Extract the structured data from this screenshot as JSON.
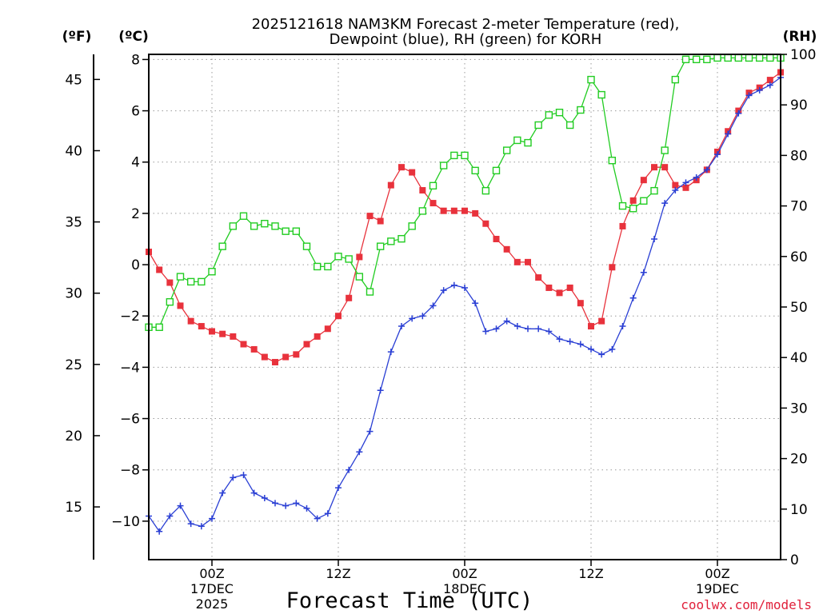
{
  "chart_data": {
    "type": "line",
    "title_line1": "2025121618 NAM3KM Forecast 2-meter Temperature (red),",
    "title_line2": "Dewpoint (blue), RH (green) for KORH",
    "xlabel": "Forecast Time (UTC)",
    "left_axis_label": "(ºF)",
    "temp_axis_label": "(ºC)",
    "right_axis_label": "(RH)",
    "credit": "coolwx.com/models",
    "x_unit": "forecast hour from 2025121618",
    "xlim": [
      0,
      60
    ],
    "ylim_c": [
      -11.5,
      8.2
    ],
    "ylim_f": [
      11.3,
      46.76
    ],
    "ylim_rh": [
      0,
      100
    ],
    "x_ticks": [
      {
        "hour": 6,
        "line1": "00Z",
        "line2": "17DEC",
        "line3": "2025"
      },
      {
        "hour": 18,
        "line1": "12Z",
        "line2": "",
        "line3": ""
      },
      {
        "hour": 30,
        "line1": "00Z",
        "line2": "18DEC",
        "line3": ""
      },
      {
        "hour": 42,
        "line1": "12Z",
        "line2": "",
        "line3": ""
      },
      {
        "hour": 54,
        "line1": "00Z",
        "line2": "19DEC",
        "line3": ""
      }
    ],
    "y_ticks_c": [
      {
        "v": 8,
        "label": "8"
      },
      {
        "v": 6,
        "label": "6"
      },
      {
        "v": 4,
        "label": "4"
      },
      {
        "v": 2,
        "label": "2"
      },
      {
        "v": 0,
        "label": "0"
      },
      {
        "v": -2,
        "label": "−2"
      },
      {
        "v": -4,
        "label": "−4"
      },
      {
        "v": -6,
        "label": "−6"
      },
      {
        "v": -8,
        "label": "−8"
      },
      {
        "v": -10,
        "label": "−10"
      }
    ],
    "y_ticks_f": [
      {
        "v": 45,
        "label": "45"
      },
      {
        "v": 40,
        "label": "40"
      },
      {
        "v": 35,
        "label": "35"
      },
      {
        "v": 30,
        "label": "30"
      },
      {
        "v": 25,
        "label": "25"
      },
      {
        "v": 20,
        "label": "20"
      },
      {
        "v": 15,
        "label": "15"
      }
    ],
    "y_ticks_rh": [
      {
        "v": 100,
        "label": "100"
      },
      {
        "v": 90,
        "label": "90"
      },
      {
        "v": 80,
        "label": "80"
      },
      {
        "v": 70,
        "label": "70"
      },
      {
        "v": 60,
        "label": "60"
      },
      {
        "v": 50,
        "label": "50"
      },
      {
        "v": 40,
        "label": "40"
      },
      {
        "v": 30,
        "label": "30"
      },
      {
        "v": 20,
        "label": "20"
      },
      {
        "v": 10,
        "label": "10"
      },
      {
        "v": 0,
        "label": "0"
      }
    ],
    "series": [
      {
        "name": "2-meter Temperature (°C)",
        "color": "#e8323c",
        "marker": "filled-square",
        "axis": "temperature",
        "values": [
          0.5,
          -0.2,
          -0.7,
          -1.6,
          -2.2,
          -2.4,
          -2.6,
          -2.7,
          -2.8,
          -3.1,
          -3.3,
          -3.6,
          -3.8,
          -3.6,
          -3.5,
          -3.1,
          -2.8,
          -2.5,
          -2.0,
          -1.3,
          0.3,
          1.9,
          1.7,
          3.1,
          3.8,
          3.6,
          2.9,
          2.4,
          2.1,
          2.1,
          2.1,
          2.0,
          1.6,
          1.0,
          0.6,
          0.1,
          0.1,
          -0.5,
          -0.9,
          -1.1,
          -0.9,
          -1.5,
          -2.4,
          -2.2,
          -0.1,
          1.5,
          2.5,
          3.3,
          3.8,
          3.8,
          3.1,
          3.0,
          3.3,
          3.7,
          4.4,
          5.2,
          6.0,
          6.7,
          6.9,
          7.2,
          7.5
        ]
      },
      {
        "name": "Dewpoint (°C)",
        "color": "#2a3fd4",
        "marker": "plus",
        "axis": "temperature",
        "values": [
          -9.8,
          -10.4,
          -9.8,
          -9.4,
          -10.1,
          -10.2,
          -9.9,
          -8.9,
          -8.3,
          -8.2,
          -8.9,
          -9.1,
          -9.3,
          -9.4,
          -9.3,
          -9.5,
          -9.9,
          -9.7,
          -8.7,
          -8.0,
          -7.3,
          -6.5,
          -4.9,
          -3.4,
          -2.4,
          -2.1,
          -2.0,
          -1.6,
          -1.0,
          -0.8,
          -0.9,
          -1.5,
          -2.6,
          -2.5,
          -2.2,
          -2.4,
          -2.5,
          -2.5,
          -2.6,
          -2.9,
          -3.0,
          -3.1,
          -3.3,
          -3.5,
          -3.3,
          -2.4,
          -1.3,
          -0.3,
          1.0,
          2.4,
          2.9,
          3.2,
          3.4,
          3.7,
          4.3,
          5.1,
          5.9,
          6.6,
          6.8,
          7.0,
          7.3
        ]
      },
      {
        "name": "Relative Humidity (%)",
        "color": "#22cc22",
        "marker": "open-square",
        "axis": "rh",
        "values": [
          46,
          46,
          51,
          56,
          55,
          55,
          57,
          62,
          66,
          68,
          66,
          66.5,
          66,
          65,
          65,
          62,
          58,
          58,
          60,
          59.5,
          56,
          53,
          62,
          63,
          63.5,
          66,
          69,
          74,
          78,
          80,
          80,
          77,
          73,
          77,
          81,
          83,
          82.5,
          86,
          88,
          88.5,
          86,
          89,
          95,
          92,
          79,
          70,
          69.5,
          71,
          73,
          81,
          95,
          99,
          99,
          99,
          99.3,
          99.3,
          99.3,
          99.3,
          99.3,
          99.3,
          99.3
        ]
      }
    ]
  }
}
